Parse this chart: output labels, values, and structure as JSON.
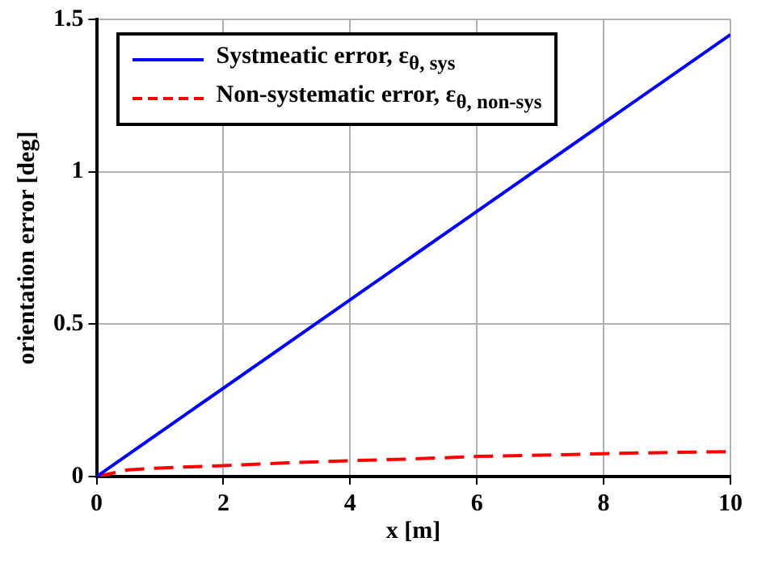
{
  "chart_data": {
    "type": "line",
    "xlabel": "x [m]",
    "ylabel": "orientation error [deg]",
    "xlim": [
      0,
      10
    ],
    "xticks": [
      0,
      2,
      4,
      6,
      8,
      10
    ],
    "ylim": [
      0,
      1.5
    ],
    "yticks": [
      0,
      {
        "value": 0.5,
        "label": "0.5"
      },
      1,
      1.5
    ],
    "grid": true,
    "legend": "top left",
    "marker": "none",
    "series": [
      {
        "name": "Systmeatic error, ε$_{θ, sys}$",
        "color": "#0000ff",
        "line_style": "solid",
        "x": [
          0,
          10
        ],
        "values": [
          0,
          1.45
        ]
      },
      {
        "name": "Non-systematic error, ε$_{θ, non-sys}$",
        "color": "#ff0000",
        "line_style": "dashed",
        "x": [
          0,
          0.5,
          1,
          2,
          3,
          4,
          5,
          6,
          7,
          8,
          9,
          10
        ],
        "values": [
          0,
          0.022,
          0.028,
          0.036,
          0.045,
          0.052,
          0.058,
          0.066,
          0.07,
          0.075,
          0.079,
          0.082
        ]
      }
    ]
  }
}
